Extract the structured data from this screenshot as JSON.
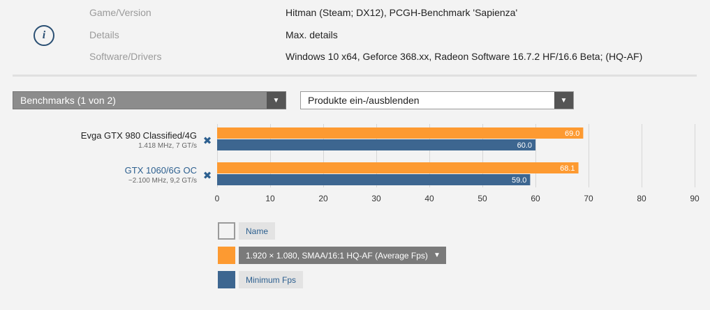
{
  "info": {
    "icon": "info-icon",
    "rows": [
      {
        "label": "Game/Version",
        "value": "Hitman (Steam; DX12), PCGH-Benchmark 'Sapienza'"
      },
      {
        "label": "Details",
        "value": "Max. details"
      },
      {
        "label": "Software/Drivers",
        "value": "Windows 10 x64, Geforce 368.xx, Radeon Software 16.7.2 HF/16.6 Beta; (HQ-AF)"
      }
    ]
  },
  "controls": {
    "benchmarks_label": "Benchmarks (1 von 2)",
    "products_label": "Produkte ein-/ausblenden",
    "arrow_glyph": "▼"
  },
  "products": [
    {
      "name": "Evga GTX 980 Classified/4G",
      "spec": "1.418 MHz, 7 GT/s",
      "remove_glyph": "✖",
      "name_color": "#222222"
    },
    {
      "name": "GTX 1060/6G OC",
      "spec": "~2.100 MHz, 9,2 GT/s",
      "remove_glyph": "✖",
      "name_color": "#2c5f8f"
    }
  ],
  "legend": {
    "name_label": "Name",
    "average_label": "1.920 × 1.080, SMAA/16:1 HQ-AF (Average Fps)",
    "minimum_label": "Minimum Fps"
  },
  "colors": {
    "average": "#fd9a31",
    "minimum": "#3d6690",
    "grid": "#d6d6d6"
  },
  "chart_data": {
    "type": "bar",
    "orientation": "horizontal",
    "categories": [
      "Evga GTX 980 Classified/4G",
      "GTX 1060/6G OC"
    ],
    "series": [
      {
        "name": "1.920 × 1.080, SMAA/16:1 HQ-AF (Average Fps)",
        "values": [
          69.0,
          68.1
        ]
      },
      {
        "name": "Minimum Fps",
        "values": [
          60.0,
          59.0
        ]
      }
    ],
    "xlim": [
      0,
      90
    ],
    "xticks": [
      0,
      10,
      20,
      30,
      40,
      50,
      60,
      70,
      80,
      90
    ],
    "grid": true,
    "legend_position": "bottom"
  }
}
